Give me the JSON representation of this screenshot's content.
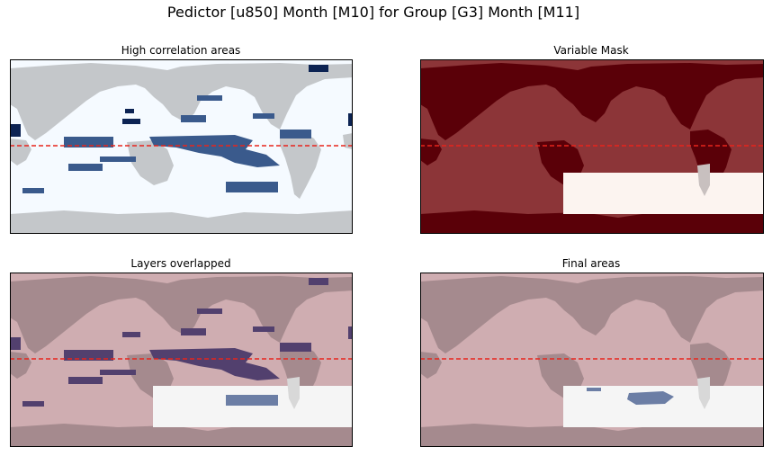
{
  "figure": {
    "title": "Pedictor [u850] Month [M10] for Group [G3] Month [M11]"
  },
  "colors": {
    "land_gray": "#c4c7ca",
    "ocean_white": "#f5faff",
    "corr_blue": "#3a5a8c",
    "corr_navy": "#0c2353",
    "mask_dark": "#5a0008",
    "mask_mid": "#8c3538",
    "mask_light": "#fcf4f0",
    "overlay_base": "#cfadb1",
    "overlay_land": "#a58a8e",
    "overlay_white": "#f5f5f5",
    "overlay_blue": "#52406e",
    "final_blue": "#6c7ea5",
    "latitude_line": "#e8241c"
  },
  "chart_data": [
    {
      "type": "heatmap",
      "title": "High correlation areas",
      "reference_line": {
        "style": "dashed",
        "color": "red",
        "lat": 0
      },
      "axes": {
        "ticks": "none"
      }
    },
    {
      "type": "heatmap",
      "title": "Variable Mask",
      "reference_line": {
        "style": "dashed",
        "color": "red",
        "lat": 0
      },
      "axes": {
        "ticks": "none"
      }
    },
    {
      "type": "heatmap",
      "title": "Layers overlapped",
      "reference_line": {
        "style": "dashed",
        "color": "red",
        "lat": 0
      },
      "axes": {
        "ticks": "none"
      }
    },
    {
      "type": "heatmap",
      "title": "Final areas",
      "reference_line": {
        "style": "dashed",
        "color": "red",
        "lat": 0
      },
      "axes": {
        "ticks": "none"
      }
    }
  ]
}
